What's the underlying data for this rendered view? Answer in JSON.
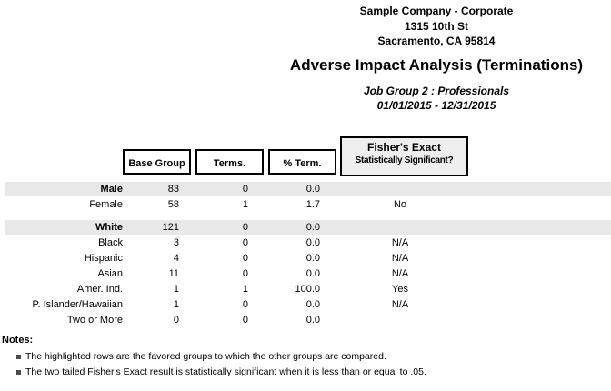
{
  "header": {
    "company": "Sample Company - Corporate",
    "address": "1315 10th St",
    "city_state_zip": "Sacramento, CA 95814",
    "title": "Adverse Impact Analysis (Terminations)",
    "job_group": "Job Group 2 : Professionals",
    "date_range": "01/01/2015 - 12/31/2015"
  },
  "table": {
    "columns": {
      "base_group": "Base Group",
      "terms": "Terms.",
      "pct_term": "% Term.",
      "fisher_line1": "Fisher's Exact",
      "fisher_line2": "Statistically Significant?"
    },
    "rows": [
      {
        "group": "Male",
        "base": "83",
        "terms": "0",
        "pct": "0.0",
        "fisher": "",
        "highlighted": true,
        "gap_before": false
      },
      {
        "group": "Female",
        "base": "58",
        "terms": "1",
        "pct": "1.7",
        "fisher": "No",
        "highlighted": false,
        "gap_before": false
      },
      {
        "group": "White",
        "base": "121",
        "terms": "0",
        "pct": "0.0",
        "fisher": "",
        "highlighted": true,
        "gap_before": true
      },
      {
        "group": "Black",
        "base": "3",
        "terms": "0",
        "pct": "0.0",
        "fisher": "N/A",
        "highlighted": false,
        "gap_before": false
      },
      {
        "group": "Hispanic",
        "base": "4",
        "terms": "0",
        "pct": "0.0",
        "fisher": "N/A",
        "highlighted": false,
        "gap_before": false
      },
      {
        "group": "Asian",
        "base": "11",
        "terms": "0",
        "pct": "0.0",
        "fisher": "N/A",
        "highlighted": false,
        "gap_before": false
      },
      {
        "group": "Amer. Ind.",
        "base": "1",
        "terms": "1",
        "pct": "100.0",
        "fisher": "Yes",
        "highlighted": false,
        "gap_before": false
      },
      {
        "group": "P. Islander/Hawaiian",
        "base": "1",
        "terms": "0",
        "pct": "0.0",
        "fisher": "N/A",
        "highlighted": false,
        "gap_before": false
      },
      {
        "group": "Two or More",
        "base": "0",
        "terms": "0",
        "pct": "0.0",
        "fisher": "",
        "highlighted": false,
        "gap_before": false
      }
    ]
  },
  "notes": {
    "label": "Notes:",
    "items": [
      "The highlighted rows are the favored groups to which the other groups are compared.",
      "The two tailed Fisher's Exact result is statistically significant when it is less than or equal to .05."
    ]
  },
  "colors": {
    "highlight_row": "#e8e8e8",
    "fisher_box_bg": "#efefef",
    "border": "#000000",
    "bullet": "#4d4d4d"
  }
}
